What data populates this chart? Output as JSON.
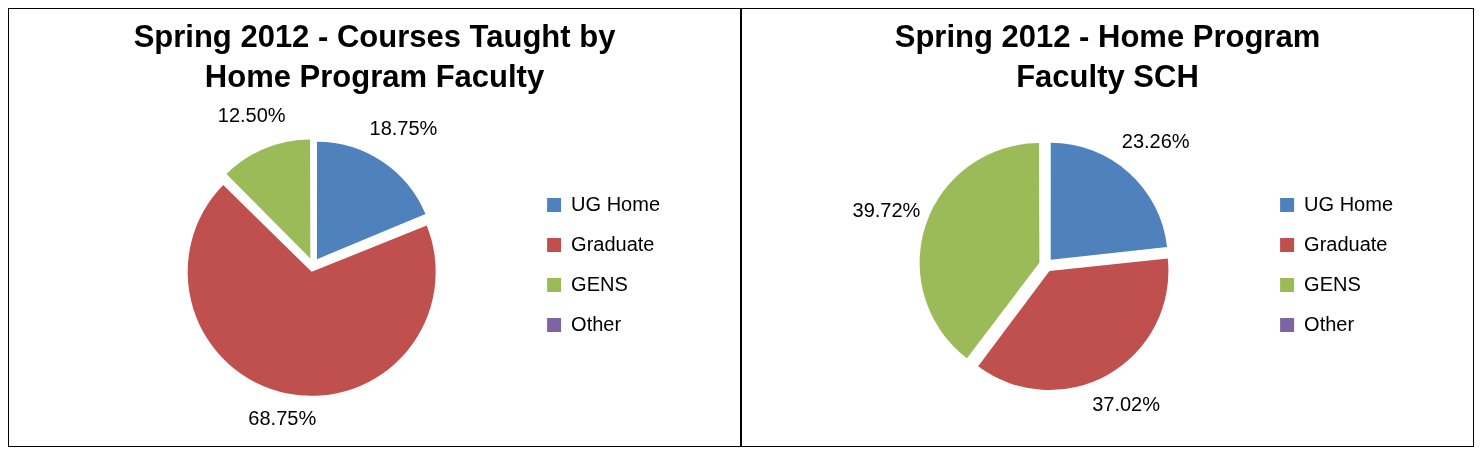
{
  "chart_data": [
    {
      "type": "pie",
      "title": "Spring 2012 - Courses Taught by Home Program Faculty",
      "categories": [
        "UG Home",
        "Graduate",
        "GENS",
        "Other"
      ],
      "values": [
        18.75,
        68.75,
        12.5,
        0
      ],
      "colors": [
        "#4f81bd",
        "#c0504d",
        "#9bbb59",
        "#8064a2"
      ],
      "value_labels": [
        "18.75%",
        "68.75%",
        "12.50%",
        null
      ],
      "legend": "right"
    },
    {
      "type": "pie",
      "title": "Spring 2012 - Home Program Faculty SCH",
      "categories": [
        "UG Home",
        "Graduate",
        "GENS",
        "Other"
      ],
      "values": [
        23.26,
        37.02,
        39.72,
        0
      ],
      "colors": [
        "#4f81bd",
        "#c0504d",
        "#9bbb59",
        "#8064a2"
      ],
      "value_labels": [
        "23.26%",
        "37.02%",
        "39.72%",
        null
      ],
      "legend": "right"
    }
  ]
}
